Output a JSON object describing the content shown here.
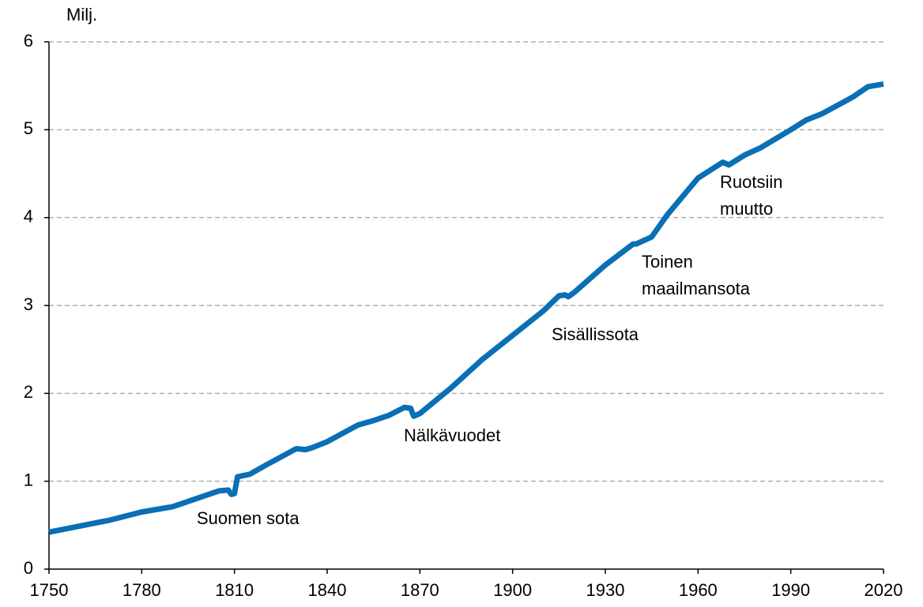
{
  "chart_data": {
    "type": "line",
    "y_label": "Milj.",
    "x": [
      1750,
      1760,
      1770,
      1780,
      1790,
      1800,
      1805,
      1808,
      1809,
      1810,
      1811,
      1815,
      1820,
      1830,
      1833,
      1835,
      1840,
      1850,
      1855,
      1860,
      1865,
      1867,
      1868,
      1870,
      1880,
      1890,
      1900,
      1910,
      1915,
      1917,
      1918,
      1920,
      1930,
      1939,
      1940,
      1945,
      1950,
      1960,
      1968,
      1970,
      1975,
      1980,
      1990,
      1995,
      2000,
      2010,
      2015,
      2020
    ],
    "series": [
      {
        "color": "#0a6fb5",
        "values": [
          0.42,
          0.49,
          0.56,
          0.65,
          0.71,
          0.83,
          0.89,
          0.9,
          0.85,
          0.86,
          1.05,
          1.08,
          1.18,
          1.37,
          1.36,
          1.38,
          1.45,
          1.64,
          1.69,
          1.75,
          1.84,
          1.83,
          1.74,
          1.77,
          2.06,
          2.38,
          2.66,
          2.94,
          3.11,
          3.12,
          3.1,
          3.15,
          3.46,
          3.7,
          3.7,
          3.78,
          4.03,
          4.45,
          4.63,
          4.6,
          4.71,
          4.79,
          5.0,
          5.11,
          5.18,
          5.37,
          5.49,
          5.52
        ]
      }
    ],
    "xlim": [
      1750,
      2020
    ],
    "xticks": [
      1750,
      1780,
      1810,
      1840,
      1870,
      1900,
      1930,
      1960,
      1990,
      2020
    ],
    "ylim": [
      0,
      6
    ],
    "yticks": [
      0,
      1,
      2,
      3,
      4,
      5,
      6
    ],
    "grid": true,
    "annotations": [
      [
        "Suomen sota"
      ],
      [
        "Nälkävuodet"
      ],
      [
        "Sisällissota"
      ],
      [
        "Toinen",
        "maailmansota"
      ],
      [
        "Ruotsiin",
        "muutto"
      ]
    ]
  }
}
